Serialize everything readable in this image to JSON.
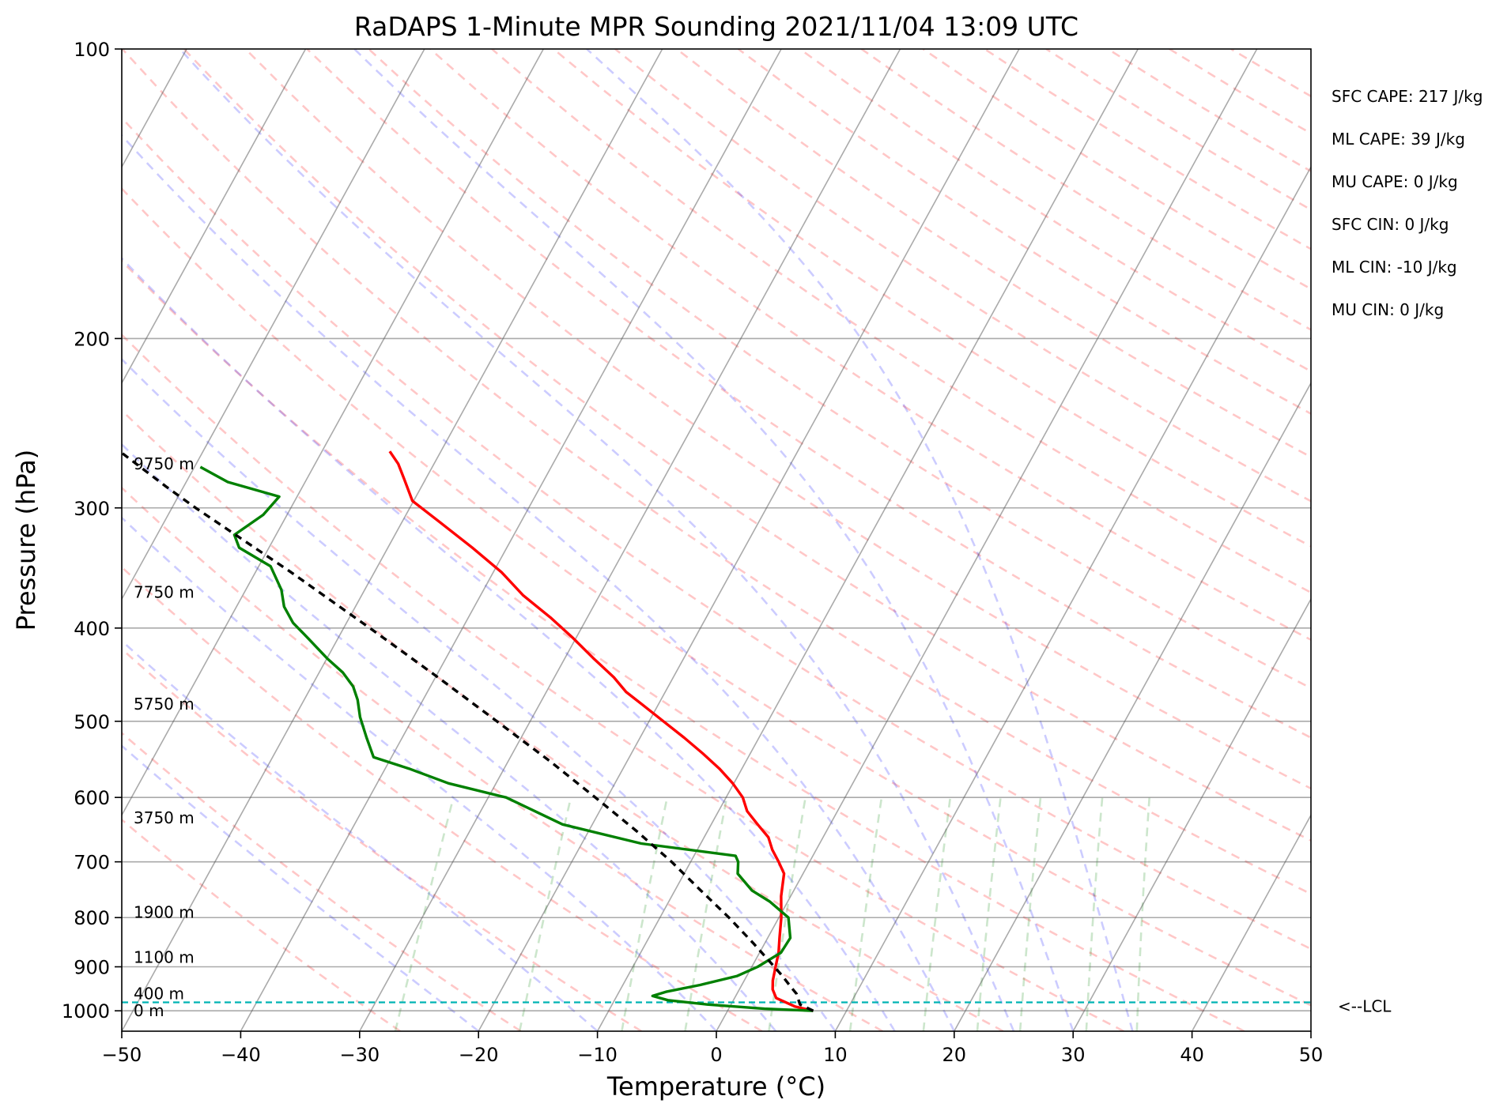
{
  "chart_data": {
    "type": "line",
    "title": "RaDAPS 1-Minute MPR Sounding 2021/11/04 13:09 UTC",
    "xlabel": "Temperature (°C)",
    "ylabel": "Pressure (hPa)",
    "xlim": [
      -50,
      50
    ],
    "ylim": [
      1050,
      100
    ],
    "y_scale": "log",
    "x_ticks": [
      "−50",
      "−40",
      "−30",
      "−20",
      "−10",
      "0",
      "10",
      "20",
      "30",
      "40",
      "50"
    ],
    "y_ticks": [
      100,
      200,
      300,
      400,
      500,
      600,
      700,
      800,
      900,
      1000
    ],
    "grid": true,
    "skew": "skew-T log-P",
    "series": [
      {
        "role": "temperature",
        "color": "#ff0000",
        "points": [
          [
            1000,
            7.2
          ],
          [
            990,
            5.5
          ],
          [
            970,
            3.5
          ],
          [
            950,
            2.8
          ],
          [
            930,
            2.4
          ],
          [
            900,
            2.0
          ],
          [
            870,
            1.6
          ],
          [
            840,
            1.0
          ],
          [
            800,
            0.2
          ],
          [
            760,
            -0.8
          ],
          [
            720,
            -1.6
          ],
          [
            700,
            -2.6
          ],
          [
            680,
            -3.7
          ],
          [
            660,
            -4.6
          ],
          [
            640,
            -6.1
          ],
          [
            620,
            -7.6
          ],
          [
            600,
            -8.6
          ],
          [
            580,
            -10.1
          ],
          [
            560,
            -11.9
          ],
          [
            540,
            -14.0
          ],
          [
            520,
            -16.3
          ],
          [
            500,
            -18.8
          ],
          [
            480,
            -21.4
          ],
          [
            466,
            -23.3
          ],
          [
            450,
            -25.0
          ],
          [
            430,
            -27.6
          ],
          [
            410,
            -30.2
          ],
          [
            390,
            -33.1
          ],
          [
            370,
            -36.4
          ],
          [
            350,
            -39.3
          ],
          [
            330,
            -42.9
          ],
          [
            310,
            -46.9
          ],
          [
            295,
            -50.1
          ],
          [
            280,
            -51.8
          ],
          [
            270,
            -53.0
          ],
          [
            262,
            -54.3
          ]
        ]
      },
      {
        "role": "dewpoint",
        "color": "#008000",
        "points": [
          [
            1000,
            7.2
          ],
          [
            995,
            3.0
          ],
          [
            985,
            -2.0
          ],
          [
            975,
            -5.5
          ],
          [
            965,
            -7.0
          ],
          [
            955,
            -6.0
          ],
          [
            940,
            -3.5
          ],
          [
            920,
            -0.8
          ],
          [
            900,
            0.5
          ],
          [
            870,
            1.8
          ],
          [
            840,
            1.9
          ],
          [
            800,
            0.8
          ],
          [
            770,
            -1.5
          ],
          [
            750,
            -3.5
          ],
          [
            720,
            -5.5
          ],
          [
            700,
            -6.0
          ],
          [
            690,
            -6.5
          ],
          [
            670,
            -15.0
          ],
          [
            640,
            -22.5
          ],
          [
            600,
            -28.5
          ],
          [
            580,
            -34.0
          ],
          [
            560,
            -38.0
          ],
          [
            545,
            -41.5
          ],
          [
            520,
            -43.0
          ],
          [
            495,
            -44.5
          ],
          [
            475,
            -45.5
          ],
          [
            460,
            -46.5
          ],
          [
            445,
            -48.0
          ],
          [
            430,
            -50.0
          ],
          [
            410,
            -52.5
          ],
          [
            395,
            -54.5
          ],
          [
            380,
            -56.0
          ],
          [
            365,
            -57.0
          ],
          [
            345,
            -59.0
          ],
          [
            330,
            -62.5
          ],
          [
            320,
            -63.5
          ],
          [
            305,
            -62.0
          ],
          [
            292,
            -61.5
          ],
          [
            282,
            -66.5
          ],
          [
            272,
            -69.5
          ]
        ]
      },
      {
        "role": "parcel",
        "color": "#000000",
        "points": [
          [
            1000,
            7.2
          ],
          [
            985,
            5.8
          ],
          [
            960,
            5.0
          ],
          [
            940,
            4.0
          ],
          [
            920,
            3.0
          ],
          [
            900,
            1.9
          ],
          [
            850,
            -1.0
          ],
          [
            800,
            -4.2
          ],
          [
            750,
            -7.8
          ],
          [
            700,
            -11.6
          ],
          [
            650,
            -16.0
          ],
          [
            600,
            -21.0
          ],
          [
            550,
            -26.5
          ],
          [
            500,
            -32.8
          ],
          [
            450,
            -39.8
          ],
          [
            400,
            -47.8
          ],
          [
            350,
            -57.0
          ],
          [
            300,
            -68.0
          ],
          [
            285,
            -71.5
          ],
          [
            262,
            -77.0
          ]
        ]
      }
    ],
    "lcl_hPa": 980,
    "lcl_label": "<--LCL",
    "height_labels": [
      {
        "label": "9750 m",
        "p": 270
      },
      {
        "label": "7750 m",
        "p": 367
      },
      {
        "label": "5750 m",
        "p": 480
      },
      {
        "label": "3750 m",
        "p": 630
      },
      {
        "label": "1900 m",
        "p": 790
      },
      {
        "label": "1100 m",
        "p": 880
      },
      {
        "label": "400 m",
        "p": 960
      },
      {
        "label": "0 m",
        "p": 1000
      }
    ],
    "indices": [
      "SFC CAPE: 217 J/kg",
      "ML CAPE: 39 J/kg",
      "MU CAPE: 0 J/kg",
      "SFC CIN: 0 J/kg",
      "ML CIN: -10 J/kg",
      "MU CIN: 0 J/kg"
    ]
  }
}
